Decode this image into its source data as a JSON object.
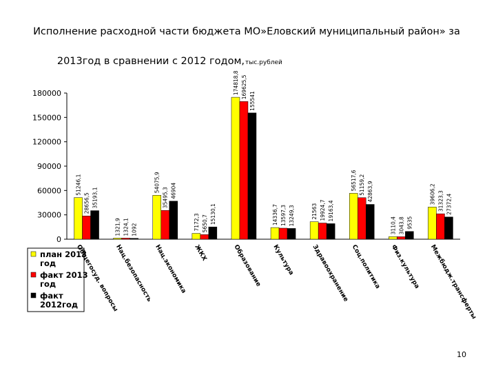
{
  "chart_data": {
    "type": "bar",
    "title_line1": "Исполнение расходной части бюджета МО»Еловский муниципальный район» за",
    "title_line2": "2013год в сравнении с 2012 годом,",
    "unit": "тыс.рублей",
    "categories": [
      "Общегосуд. вопросы",
      "Нац.безопасность",
      "Нац.экономика",
      "ЖКХ",
      "Образование",
      "Культура",
      "Здравоохранение",
      "Соц.политика",
      "Физ.культура",
      "Межбюдж.трансферты"
    ],
    "series": [
      {
        "name": "план 2013 год",
        "color": "#ffff00",
        "values": [
          51246.1,
          1321.9,
          54075.9,
          7172.3,
          174818.8,
          14336.7,
          21563,
          56517.6,
          3110.4,
          39606.2
        ],
        "value_labels": [
          "51246,1",
          "1321,9",
          "54075,9",
          "7172,3",
          "174818,8",
          "14336,7",
          "21563",
          "56517,6",
          "3110,4",
          "39606,2"
        ]
      },
      {
        "name": "факт 2013 год",
        "color": "#ff0000",
        "values": [
          28656.5,
          1324.1,
          35495.3,
          5650.7,
          169625.5,
          13597.3,
          19924.7,
          51159.2,
          3043.8,
          31323.3
        ],
        "value_labels": [
          "28656,5",
          "1324,1",
          "35495,3",
          "5650,7",
          "169625,5",
          "13597,3",
          "19924,7",
          "51159,2",
          "3043,8",
          "31323,3"
        ]
      },
      {
        "name": "факт 2012год",
        "color": "#000000",
        "values": [
          35193.1,
          1092,
          46904,
          15130.1,
          155541,
          13249.3,
          19163.4,
          42863.9,
          9535,
          27372.4
        ],
        "value_labels": [
          "35193,1",
          "1092",
          "46904",
          "15130,1",
          "155541",
          "13249,3",
          "19163,4",
          "42863,9",
          "9535",
          "27372,4"
        ]
      }
    ],
    "ylim": [
      0,
      180000
    ],
    "yticks": [
      0,
      30000,
      60000,
      90000,
      120000,
      150000,
      180000
    ],
    "page_number": "10"
  }
}
